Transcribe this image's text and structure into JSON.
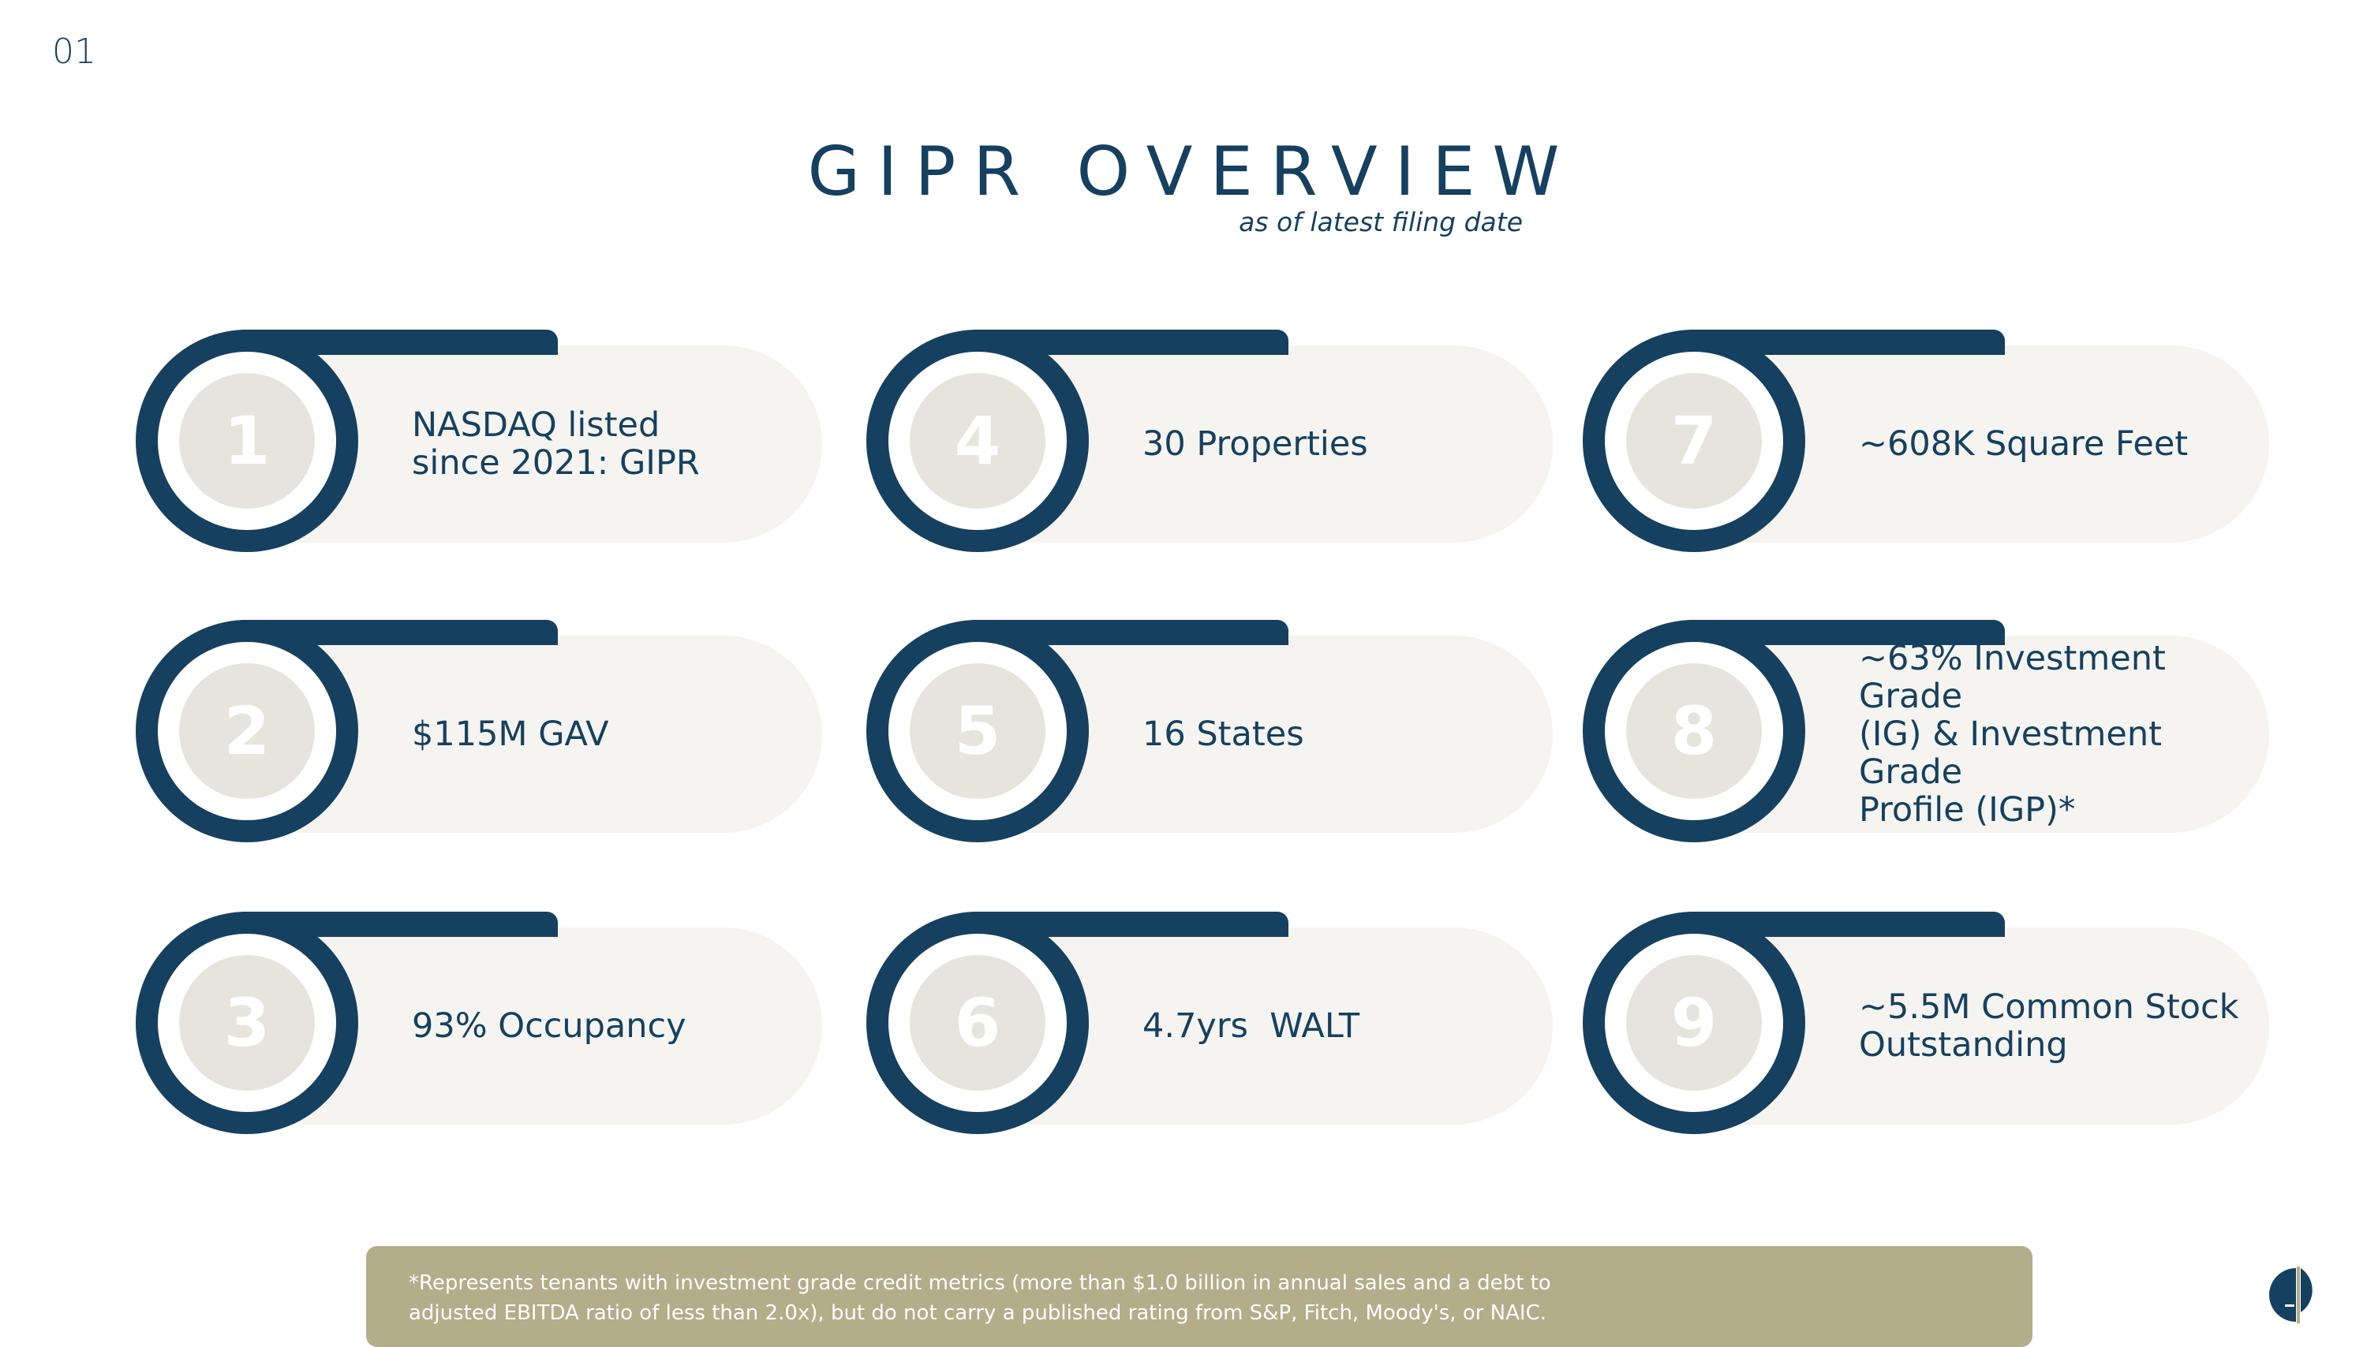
{
  "page_number": "01",
  "title": "GIPR OVERVIEW",
  "subtitle": "as of latest filing date",
  "cards": [
    {
      "number": "1",
      "lines": [
        "NASDAQ listed",
        "since 2021: GIPR"
      ]
    },
    {
      "number": "2",
      "lines": [
        "$115M GAV"
      ]
    },
    {
      "number": "3",
      "lines": [
        "93% Occupancy"
      ]
    },
    {
      "number": "4",
      "lines": [
        "30 Properties"
      ]
    },
    {
      "number": "5",
      "lines": [
        "16 States"
      ]
    },
    {
      "number": "6",
      "lines": [
        "4.7yrs  WALT"
      ]
    },
    {
      "number": "7",
      "lines": [
        "~608K Square Feet"
      ]
    },
    {
      "number": "8",
      "lines": [
        "~63% Investment Grade",
        "(IG) & Investment Grade",
        "Profile (IGP)*"
      ]
    },
    {
      "number": "9",
      "lines": [
        "~5.5M Common Stock",
        "Outstanding"
      ]
    }
  ],
  "footnote": {
    "line1": "*Represents tenants with investment grade credit metrics (more than $1.0 billion in annual sales and a debt to",
    "line2": "adjusted EBITDA ratio of less than 2.0x), but do not carry a published rating from S&P, Fitch, Moody's, or NAIC."
  },
  "colors": {
    "navy": "#16405f",
    "pill": "#f5f4f0",
    "number_circle": "#e6e5dd",
    "footnote_bg": "#b3ad8a"
  },
  "logo_icon": "company-logo-icon"
}
